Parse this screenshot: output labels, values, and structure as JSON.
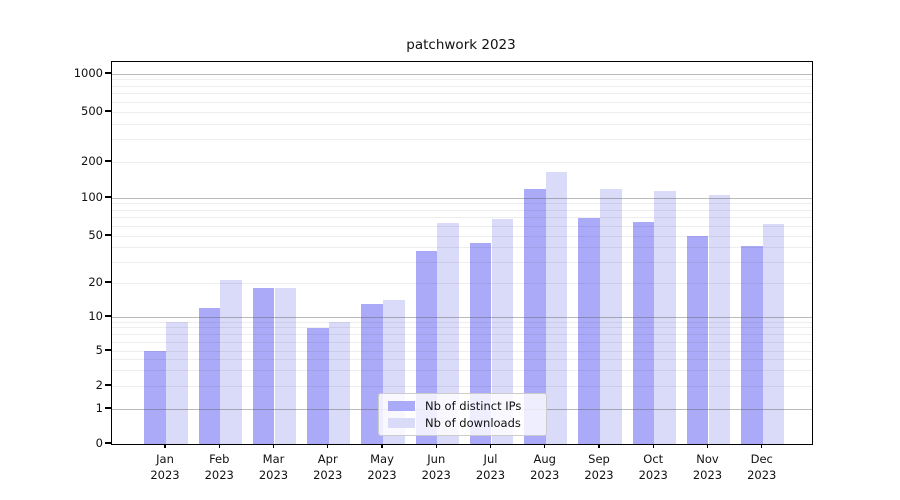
{
  "title": "patchwork 2023",
  "chart_data": {
    "type": "bar",
    "title": "patchwork 2023",
    "categories": [
      "Jan 2023",
      "Feb 2023",
      "Mar 2023",
      "Apr 2023",
      "May 2023",
      "Jun 2023",
      "Jul 2023",
      "Aug 2023",
      "Sep 2023",
      "Oct 2023",
      "Nov 2023",
      "Dec 2023"
    ],
    "series": [
      {
        "name": "Nb of distinct IPs",
        "color": "#aaaaf8",
        "values": [
          5,
          12,
          18,
          8,
          13,
          37,
          44,
          120,
          69,
          65,
          50,
          41
        ]
      },
      {
        "name": "Nb of downloads",
        "color": "#dadaf9",
        "values": [
          9,
          21,
          18,
          9,
          14,
          63,
          68,
          165,
          118,
          115,
          106,
          62
        ]
      }
    ],
    "yscale": "log",
    "ylim": [
      0,
      1250
    ],
    "yticks": [
      1000,
      500,
      200,
      100,
      50,
      20,
      10,
      5,
      2,
      1,
      0
    ],
    "grid": true,
    "legend_position": "lower center"
  },
  "colors": {
    "bar_distinct_ips": "#aaaaf8",
    "bar_downloads": "#dadaf9",
    "grid_major": "#bdbdbd",
    "grid_minor": "#ececec",
    "axis": "#000000",
    "legend_border": "#cccccc"
  }
}
